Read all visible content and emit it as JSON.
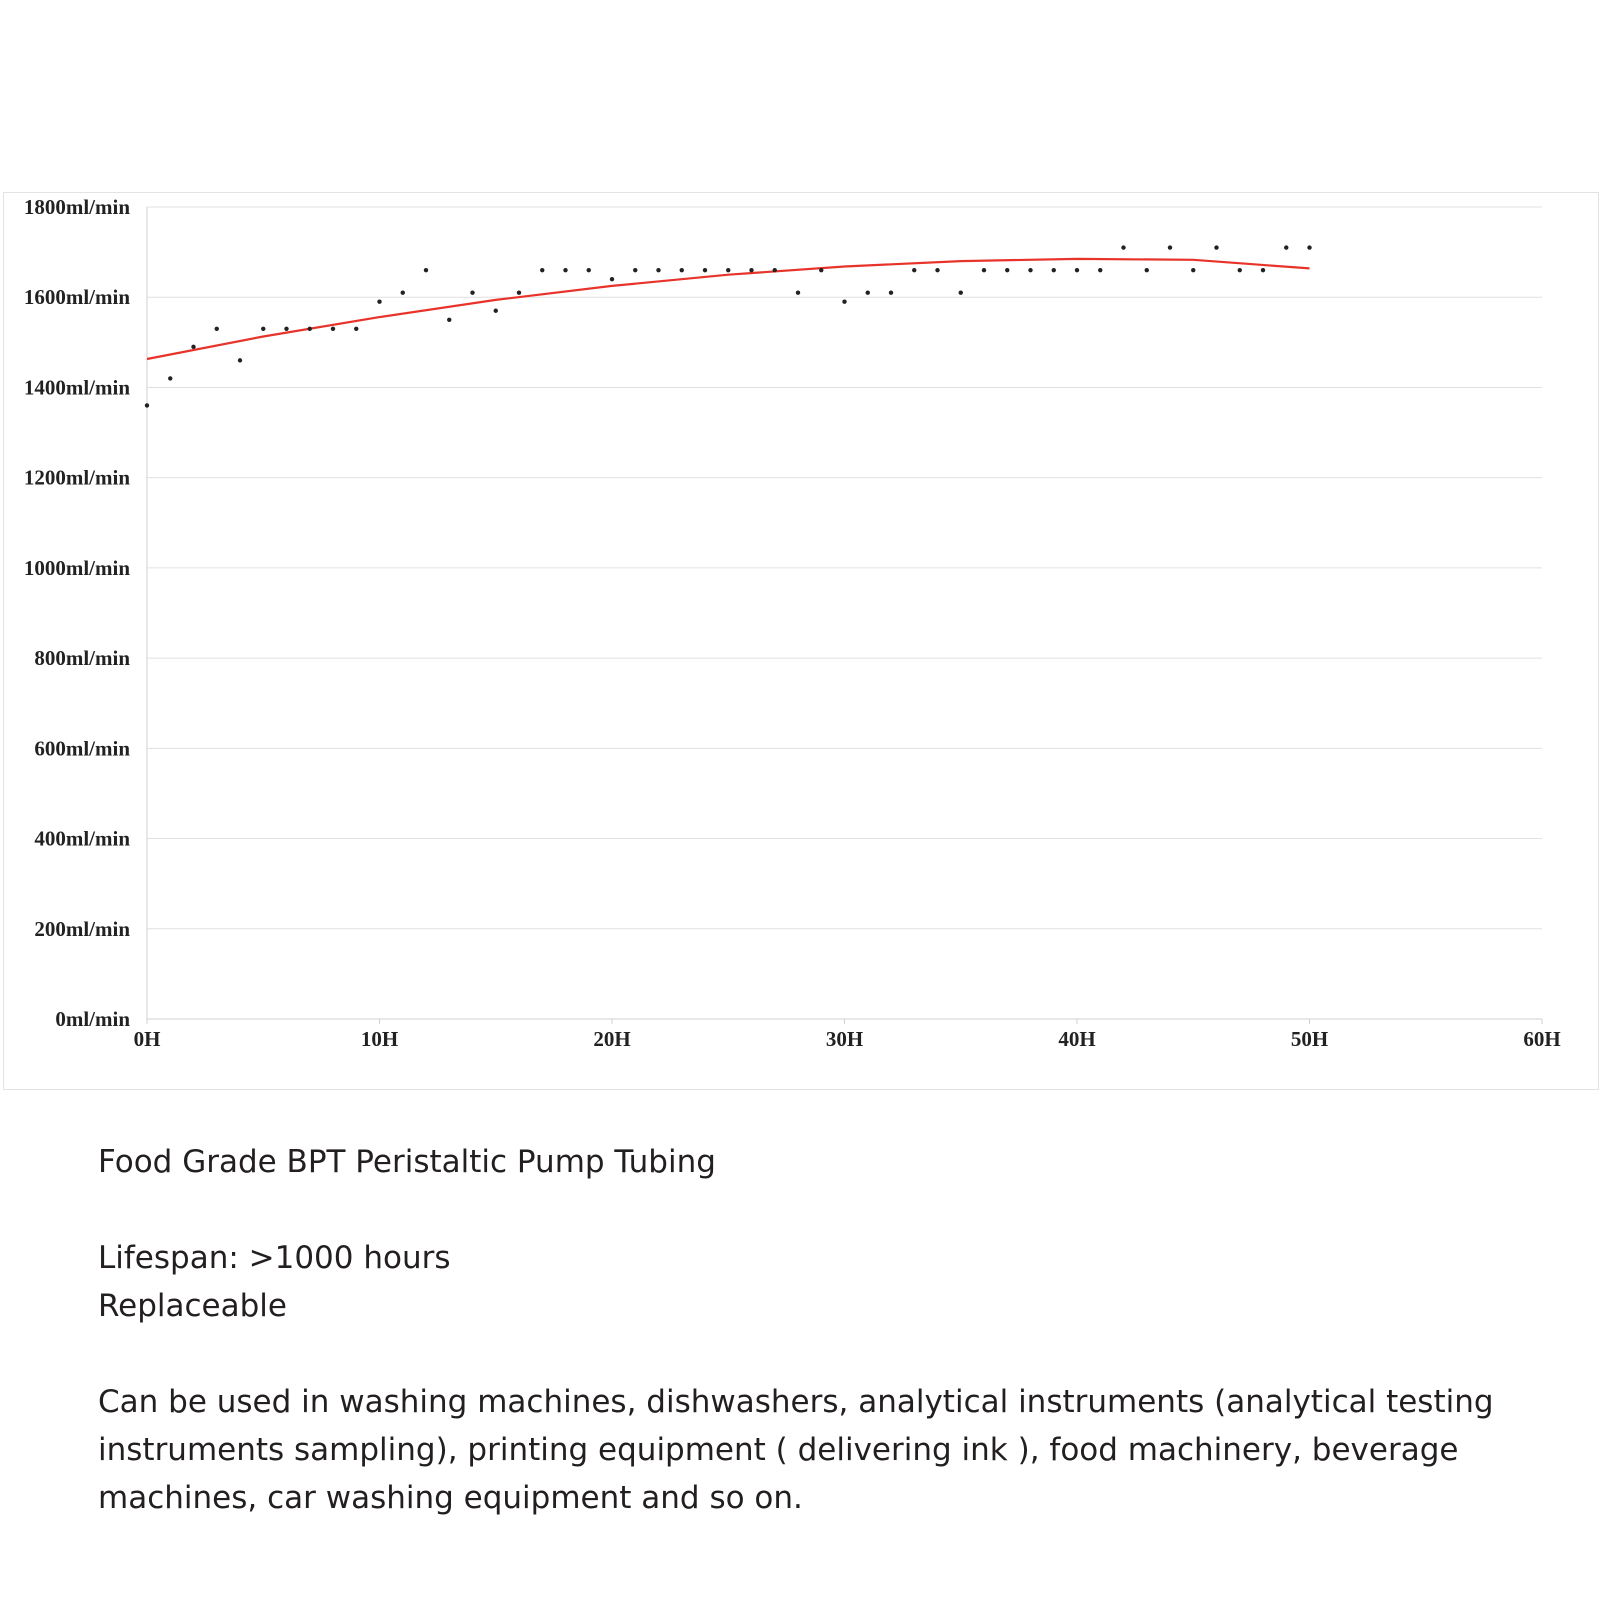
{
  "chart_data": {
    "type": "scatter",
    "title": "",
    "xlabel": "",
    "ylabel": "",
    "xlim": [
      0,
      60
    ],
    "ylim": [
      0,
      1800
    ],
    "grid": true,
    "legend": "none",
    "x_ticks": [
      {
        "value": 0,
        "label": "0H"
      },
      {
        "value": 10,
        "label": "10H"
      },
      {
        "value": 20,
        "label": "20H"
      },
      {
        "value": 30,
        "label": "30H"
      },
      {
        "value": 40,
        "label": "40H"
      },
      {
        "value": 50,
        "label": "50H"
      },
      {
        "value": 60,
        "label": "60H"
      }
    ],
    "y_ticks": [
      {
        "value": 0,
        "label": "0ml/min"
      },
      {
        "value": 200,
        "label": "200ml/min"
      },
      {
        "value": 400,
        "label": "400ml/min"
      },
      {
        "value": 600,
        "label": "600ml/min"
      },
      {
        "value": 800,
        "label": "800ml/min"
      },
      {
        "value": 1000,
        "label": "1000ml/min"
      },
      {
        "value": 1200,
        "label": "1200ml/min"
      },
      {
        "value": 1400,
        "label": "1400ml/min"
      },
      {
        "value": 1600,
        "label": "1600ml/min"
      },
      {
        "value": 1800,
        "label": "1800ml/min"
      }
    ],
    "series": [
      {
        "marker_color": "#222222",
        "x": [
          0,
          1,
          2,
          3,
          4,
          5,
          6,
          7,
          8,
          9,
          10,
          11,
          12,
          13,
          14,
          15,
          16,
          17,
          18,
          19,
          20,
          21,
          22,
          23,
          24,
          25,
          26,
          27,
          28,
          29,
          30,
          31,
          32,
          33,
          34,
          35,
          36,
          37,
          38,
          39,
          40,
          41,
          42,
          43,
          44,
          45,
          46,
          47,
          48,
          49,
          50
        ],
        "y": [
          1360,
          1420,
          1490,
          1530,
          1460,
          1530,
          1530,
          1530,
          1530,
          1530,
          1590,
          1610,
          1660,
          1550,
          1610,
          1570,
          1610,
          1660,
          1660,
          1660,
          1640,
          1660,
          1660,
          1660,
          1660,
          1660,
          1660,
          1660,
          1610,
          1660,
          1590,
          1610,
          1610,
          1660,
          1660,
          1610,
          1660,
          1660,
          1660,
          1660,
          1660,
          1660,
          1710,
          1660,
          1710,
          1660,
          1710,
          1660,
          1660,
          1710,
          1710
        ]
      }
    ],
    "trendline": {
      "type": "polynomial",
      "color": "#e8332a",
      "x": [
        0,
        5,
        10,
        15,
        20,
        25,
        30,
        35,
        40,
        45,
        50
      ],
      "y": [
        1463,
        1513,
        1556,
        1594,
        1625,
        1650,
        1668,
        1680,
        1685,
        1683,
        1664
      ]
    },
    "colors": {
      "grid": "#e0e0e0",
      "axis": "#d0d0d0",
      "text": "#222222"
    }
  },
  "description": {
    "product_title": "Food Grade BPT Peristaltic Pump Tubing",
    "lifespan": "Lifespan: >1000 hours",
    "replaceable": "Replaceable",
    "usage": "Can be used in washing machines, dishwashers, analytical instruments (analytical testing instruments sampling), printing equipment ( delivering ink ), food machinery, beverage machines, car washing equipment and so on."
  }
}
